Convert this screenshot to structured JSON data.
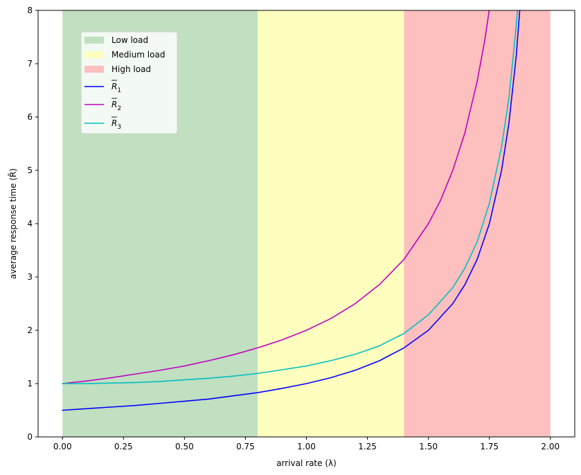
{
  "chart_data": {
    "type": "line",
    "title": "",
    "xlabel": "arrival rate (λ)",
    "ylabel": "average response time (R̄)",
    "xlim": [
      -0.1,
      2.1
    ],
    "ylim": [
      0,
      8
    ],
    "xticks": [
      0.0,
      0.25,
      0.5,
      0.75,
      1.0,
      1.25,
      1.5,
      1.75,
      2.0
    ],
    "xtick_labels": [
      "0.00",
      "0.25",
      "0.50",
      "0.75",
      "1.00",
      "1.25",
      "1.50",
      "1.75",
      "2.00"
    ],
    "yticks": [
      0,
      1,
      2,
      3,
      4,
      5,
      6,
      7,
      8
    ],
    "ytick_labels": [
      "0",
      "1",
      "2",
      "3",
      "4",
      "5",
      "6",
      "7",
      "8"
    ],
    "grid": false,
    "legend_position": "upper-left",
    "regions": [
      {
        "name": "Low load",
        "x_start": 0.0,
        "x_end": 0.8,
        "color": "#c1dfc1"
      },
      {
        "name": "Medium load",
        "x_start": 0.8,
        "x_end": 1.4,
        "color": "#fefebf"
      },
      {
        "name": "High load",
        "x_start": 1.4,
        "x_end": 2.0,
        "color": "#febfbf"
      }
    ],
    "series": [
      {
        "name": "R̄1",
        "label_main": "R",
        "label_sub": "1",
        "color": "#0000ff",
        "x": [
          0.0,
          0.1,
          0.2,
          0.3,
          0.4,
          0.5,
          0.6,
          0.7,
          0.8,
          0.9,
          1.0,
          1.1,
          1.2,
          1.3,
          1.4,
          1.5,
          1.6,
          1.65,
          1.7,
          1.75,
          1.8,
          1.83,
          1.86,
          1.88
        ],
        "y": [
          0.5,
          0.53,
          0.56,
          0.59,
          0.63,
          0.67,
          0.71,
          0.77,
          0.83,
          0.91,
          1.0,
          1.11,
          1.25,
          1.43,
          1.67,
          2.0,
          2.5,
          2.86,
          3.33,
          4.0,
          5.0,
          5.88,
          7.14,
          8.33
        ]
      },
      {
        "name": "R̄2",
        "label_main": "R",
        "label_sub": "2",
        "color": "#bf00bf",
        "x": [
          0.0,
          0.1,
          0.2,
          0.3,
          0.4,
          0.5,
          0.6,
          0.7,
          0.8,
          0.9,
          1.0,
          1.1,
          1.2,
          1.3,
          1.4,
          1.5,
          1.55,
          1.6,
          1.65,
          1.7,
          1.73,
          1.76
        ],
        "y": [
          1.0,
          1.05,
          1.11,
          1.18,
          1.25,
          1.33,
          1.43,
          1.54,
          1.67,
          1.82,
          2.0,
          2.22,
          2.5,
          2.86,
          3.33,
          4.0,
          4.44,
          5.0,
          5.71,
          6.67,
          7.41,
          8.33
        ]
      },
      {
        "name": "R̄3",
        "label_main": "R",
        "label_sub": "3",
        "color": "#00bfbf",
        "x": [
          0.0,
          0.1,
          0.2,
          0.3,
          0.4,
          0.5,
          0.6,
          0.7,
          0.8,
          0.9,
          1.0,
          1.1,
          1.2,
          1.3,
          1.4,
          1.5,
          1.6,
          1.65,
          1.7,
          1.75,
          1.8,
          1.83,
          1.86,
          1.875
        ],
        "y": [
          1.0,
          1.0,
          1.01,
          1.02,
          1.04,
          1.07,
          1.1,
          1.14,
          1.19,
          1.26,
          1.33,
          1.43,
          1.55,
          1.71,
          1.94,
          2.29,
          2.8,
          3.17,
          3.66,
          4.38,
          5.44,
          6.35,
          7.7,
          8.59
        ]
      }
    ]
  }
}
